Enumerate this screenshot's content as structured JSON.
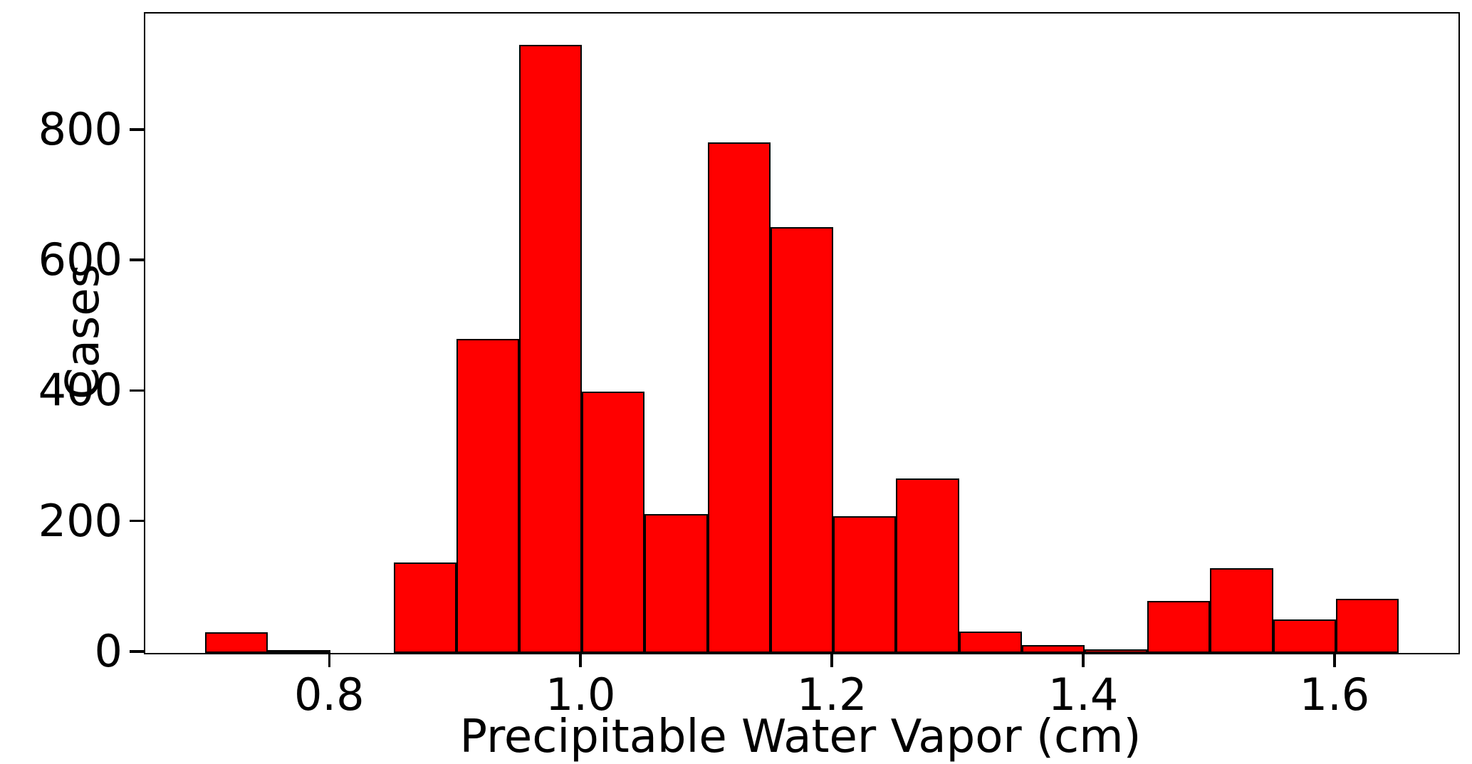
{
  "figure": {
    "background_color": "#ffffff",
    "text_color": "#000000"
  },
  "chart_data": {
    "type": "bar",
    "subtype": "histogram",
    "title": "",
    "xlabel": "Precipitable Water Vapor (cm)",
    "ylabel": "Cases",
    "bar_fill_color": "#ff0000",
    "bar_edge_color": "#000000",
    "bin_width": 0.05,
    "bin_starts": [
      0.7,
      0.75,
      0.8,
      0.85,
      0.9,
      0.95,
      1.0,
      1.05,
      1.1,
      1.15,
      1.2,
      1.25,
      1.3,
      1.35,
      1.4,
      1.45,
      1.5,
      1.55,
      1.6
    ],
    "values": [
      32,
      3,
      0,
      139,
      481,
      932,
      400,
      213,
      783,
      653,
      210,
      267,
      33,
      12,
      5,
      80,
      130,
      51,
      83
    ],
    "xlim": [
      0.6525,
      1.6975
    ],
    "ylim": [
      0,
      980
    ],
    "xticks": [
      0.8,
      1.0,
      1.2,
      1.4,
      1.6
    ],
    "xtick_labels": [
      "0.8",
      "1.0",
      "1.2",
      "1.4",
      "1.6"
    ],
    "yticks": [
      0,
      200,
      400,
      600,
      800
    ],
    "ytick_labels": [
      "0",
      "200",
      "400",
      "600",
      "800"
    ],
    "grid": false,
    "legend": null
  }
}
